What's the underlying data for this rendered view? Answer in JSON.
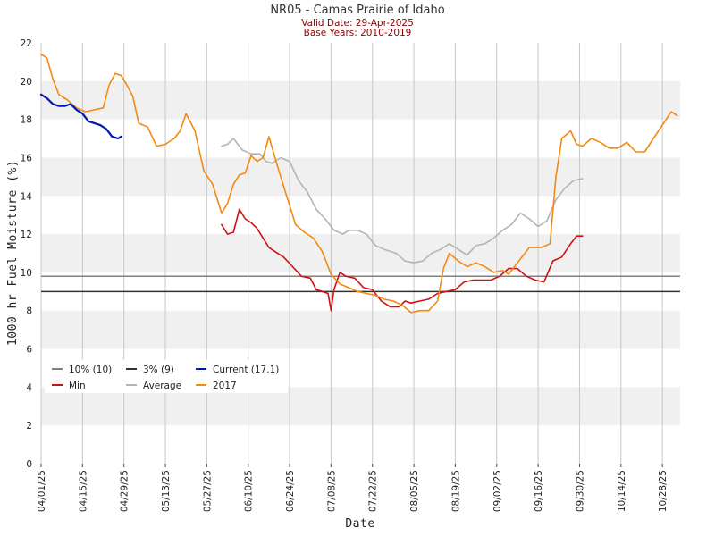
{
  "chart_data": {
    "type": "line",
    "title": "NR05 - Camas Prairie of Idaho",
    "subtitle_lines": [
      "Valid Date: 29-Apr-2025",
      "Base Years: 2010-2019"
    ],
    "xlabel": "Date",
    "ylabel": "1000 hr Fuel Moisture (%)",
    "ylim": [
      0,
      22
    ],
    "yticks": [
      "0",
      "2",
      "4",
      "6",
      "8",
      "10",
      "12",
      "14",
      "16",
      "18",
      "20",
      "22"
    ],
    "xlim": [
      "04/01",
      "11/03"
    ],
    "xticks": [
      "04/01/25",
      "04/15/25",
      "04/29/25",
      "05/13/25",
      "05/27/25",
      "06/10/25",
      "06/24/25",
      "07/08/25",
      "07/22/25",
      "08/05/25",
      "08/19/25",
      "09/02/25",
      "09/16/25",
      "09/30/25",
      "10/14/25",
      "10/28/25"
    ],
    "grid": true,
    "legend_position": "bottom-left",
    "reference_lines": [
      {
        "name": "10% (10)",
        "value": 9.8,
        "color": "#808080"
      },
      {
        "name": "3% (9)",
        "value": 9.0,
        "color": "#333333"
      }
    ],
    "series": [
      {
        "name": "Current (17.1)",
        "color": "#0018b0",
        "points": [
          [
            "04/01",
            19.3
          ],
          [
            "04/03",
            19.1
          ],
          [
            "04/05",
            18.8
          ],
          [
            "04/07",
            18.7
          ],
          [
            "04/09",
            18.7
          ],
          [
            "04/11",
            18.8
          ],
          [
            "04/13",
            18.5
          ],
          [
            "04/15",
            18.3
          ],
          [
            "04/17",
            17.9
          ],
          [
            "04/19",
            17.8
          ],
          [
            "04/21",
            17.7
          ],
          [
            "04/23",
            17.5
          ],
          [
            "04/25",
            17.1
          ],
          [
            "04/27",
            17.0
          ],
          [
            "04/28",
            17.1
          ]
        ]
      },
      {
        "name": "Min",
        "color": "#d01010",
        "points": [
          [
            "06/01",
            12.5
          ],
          [
            "06/03",
            12.0
          ],
          [
            "06/05",
            12.1
          ],
          [
            "06/07",
            13.3
          ],
          [
            "06/09",
            12.8
          ],
          [
            "06/11",
            12.6
          ],
          [
            "06/13",
            12.3
          ],
          [
            "06/15",
            11.8
          ],
          [
            "06/17",
            11.3
          ],
          [
            "06/19",
            11.1
          ],
          [
            "06/22",
            10.8
          ],
          [
            "06/25",
            10.3
          ],
          [
            "06/28",
            9.8
          ],
          [
            "07/01",
            9.7
          ],
          [
            "07/03",
            9.1
          ],
          [
            "07/05",
            9.0
          ],
          [
            "07/07",
            8.9
          ],
          [
            "07/08",
            8.0
          ],
          [
            "07/09",
            9.1
          ],
          [
            "07/11",
            10.0
          ],
          [
            "07/13",
            9.8
          ],
          [
            "07/16",
            9.7
          ],
          [
            "07/19",
            9.2
          ],
          [
            "07/22",
            9.1
          ],
          [
            "07/25",
            8.5
          ],
          [
            "07/28",
            8.2
          ],
          [
            "07/31",
            8.2
          ],
          [
            "08/02",
            8.5
          ],
          [
            "08/04",
            8.4
          ],
          [
            "08/07",
            8.5
          ],
          [
            "08/10",
            8.6
          ],
          [
            "08/13",
            8.9
          ],
          [
            "08/16",
            9.0
          ],
          [
            "08/19",
            9.1
          ],
          [
            "08/22",
            9.5
          ],
          [
            "08/25",
            9.6
          ],
          [
            "08/28",
            9.6
          ],
          [
            "08/31",
            9.6
          ],
          [
            "09/03",
            9.8
          ],
          [
            "09/06",
            10.2
          ],
          [
            "09/09",
            10.2
          ],
          [
            "09/12",
            9.8
          ],
          [
            "09/15",
            9.6
          ],
          [
            "09/18",
            9.5
          ],
          [
            "09/21",
            10.6
          ],
          [
            "09/24",
            10.8
          ],
          [
            "09/27",
            11.5
          ],
          [
            "09/29",
            11.9
          ],
          [
            "10/01",
            11.9
          ]
        ]
      },
      {
        "name": "Average",
        "color": "#b4b4b4",
        "points": [
          [
            "06/01",
            16.6
          ],
          [
            "06/03",
            16.7
          ],
          [
            "06/05",
            17.0
          ],
          [
            "06/08",
            16.4
          ],
          [
            "06/11",
            16.2
          ],
          [
            "06/14",
            16.2
          ],
          [
            "06/16",
            15.8
          ],
          [
            "06/18",
            15.7
          ],
          [
            "06/21",
            16.0
          ],
          [
            "06/24",
            15.8
          ],
          [
            "06/27",
            14.8
          ],
          [
            "06/30",
            14.2
          ],
          [
            "07/03",
            13.3
          ],
          [
            "07/06",
            12.8
          ],
          [
            "07/09",
            12.2
          ],
          [
            "07/12",
            12.0
          ],
          [
            "07/14",
            12.2
          ],
          [
            "07/17",
            12.2
          ],
          [
            "07/20",
            12.0
          ],
          [
            "07/23",
            11.4
          ],
          [
            "07/26",
            11.2
          ],
          [
            "07/30",
            11.0
          ],
          [
            "08/02",
            10.6
          ],
          [
            "08/05",
            10.5
          ],
          [
            "08/08",
            10.6
          ],
          [
            "08/11",
            11.0
          ],
          [
            "08/14",
            11.2
          ],
          [
            "08/17",
            11.5
          ],
          [
            "08/20",
            11.2
          ],
          [
            "08/23",
            10.9
          ],
          [
            "08/26",
            11.4
          ],
          [
            "08/29",
            11.5
          ],
          [
            "09/01",
            11.8
          ],
          [
            "09/04",
            12.2
          ],
          [
            "09/07",
            12.5
          ],
          [
            "09/10",
            13.1
          ],
          [
            "09/13",
            12.8
          ],
          [
            "09/16",
            12.4
          ],
          [
            "09/19",
            12.7
          ],
          [
            "09/22",
            13.8
          ],
          [
            "09/25",
            14.4
          ],
          [
            "09/28",
            14.8
          ],
          [
            "10/01",
            14.9
          ]
        ]
      },
      {
        "name": "2017",
        "color": "#f28a10",
        "points": [
          [
            "04/01",
            21.4
          ],
          [
            "04/03",
            21.2
          ],
          [
            "04/05",
            20.1
          ],
          [
            "04/07",
            19.3
          ],
          [
            "04/10",
            19.0
          ],
          [
            "04/13",
            18.6
          ],
          [
            "04/16",
            18.4
          ],
          [
            "04/19",
            18.5
          ],
          [
            "04/22",
            18.6
          ],
          [
            "04/24",
            19.8
          ],
          [
            "04/26",
            20.4
          ],
          [
            "04/28",
            20.3
          ],
          [
            "04/30",
            19.8
          ],
          [
            "05/02",
            19.2
          ],
          [
            "05/04",
            17.8
          ],
          [
            "05/07",
            17.6
          ],
          [
            "05/10",
            16.6
          ],
          [
            "05/13",
            16.7
          ],
          [
            "05/16",
            17.0
          ],
          [
            "05/18",
            17.4
          ],
          [
            "05/20",
            18.3
          ],
          [
            "05/23",
            17.4
          ],
          [
            "05/26",
            15.3
          ],
          [
            "05/29",
            14.6
          ],
          [
            "06/01",
            13.1
          ],
          [
            "06/03",
            13.6
          ],
          [
            "06/05",
            14.6
          ],
          [
            "06/07",
            15.1
          ],
          [
            "06/09",
            15.2
          ],
          [
            "06/11",
            16.1
          ],
          [
            "06/13",
            15.8
          ],
          [
            "06/15",
            16.0
          ],
          [
            "06/17",
            17.1
          ],
          [
            "06/20",
            15.5
          ],
          [
            "06/23",
            14.0
          ],
          [
            "06/26",
            12.5
          ],
          [
            "06/29",
            12.1
          ],
          [
            "07/02",
            11.8
          ],
          [
            "07/05",
            11.1
          ],
          [
            "07/08",
            9.9
          ],
          [
            "07/11",
            9.4
          ],
          [
            "07/14",
            9.2
          ],
          [
            "07/17",
            9.0
          ],
          [
            "07/20",
            8.9
          ],
          [
            "07/23",
            8.8
          ],
          [
            "07/26",
            8.6
          ],
          [
            "07/29",
            8.5
          ],
          [
            "08/01",
            8.3
          ],
          [
            "08/04",
            7.9
          ],
          [
            "08/07",
            8.0
          ],
          [
            "08/10",
            8.0
          ],
          [
            "08/13",
            8.5
          ],
          [
            "08/15",
            10.2
          ],
          [
            "08/17",
            11.0
          ],
          [
            "08/20",
            10.6
          ],
          [
            "08/23",
            10.3
          ],
          [
            "08/26",
            10.5
          ],
          [
            "08/29",
            10.3
          ],
          [
            "09/01",
            10.0
          ],
          [
            "09/04",
            10.1
          ],
          [
            "09/06",
            9.9
          ],
          [
            "09/09",
            10.5
          ],
          [
            "09/13",
            11.3
          ],
          [
            "09/17",
            11.3
          ],
          [
            "09/20",
            11.5
          ],
          [
            "09/22",
            15.0
          ],
          [
            "09/24",
            17.0
          ],
          [
            "09/27",
            17.4
          ],
          [
            "09/29",
            16.7
          ],
          [
            "10/01",
            16.6
          ],
          [
            "10/04",
            17.0
          ],
          [
            "10/07",
            16.8
          ],
          [
            "10/10",
            16.5
          ],
          [
            "10/13",
            16.5
          ],
          [
            "10/16",
            16.8
          ],
          [
            "10/19",
            16.3
          ],
          [
            "10/22",
            16.3
          ],
          [
            "10/25",
            17.0
          ],
          [
            "10/28",
            17.7
          ],
          [
            "10/31",
            18.4
          ],
          [
            "11/02",
            18.2
          ]
        ]
      }
    ]
  },
  "colors": {
    "band_shade": "#f0f0f0",
    "vertical_grid": "#c8c8c8",
    "subtitle": "#8b0000"
  }
}
